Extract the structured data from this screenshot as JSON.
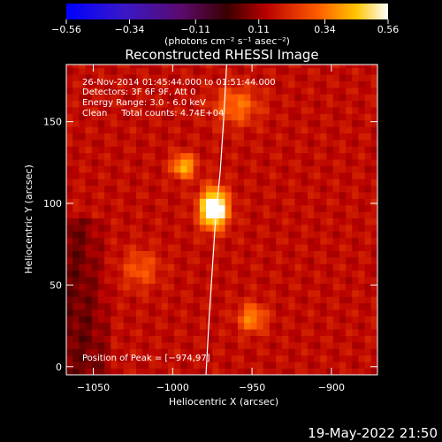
{
  "chart_data": {
    "type": "heatmap",
    "title": "Reconstructed RHESSI Image",
    "xlabel": "Heliocentric X (arcsec)",
    "ylabel": "Heliocentric Y (arcsec)",
    "xlim": [
      -1067,
      -871
    ],
    "ylim": [
      -5,
      185
    ],
    "x_ticks": [
      -1050,
      -1000,
      -950,
      -900
    ],
    "x_tick_labels": [
      "−1050",
      "−1000",
      "−950",
      "−900"
    ],
    "y_ticks": [
      0,
      50,
      100,
      150
    ],
    "y_tick_labels": [
      "0",
      "50",
      "100",
      "150"
    ],
    "colorbar": {
      "range": [
        -0.56,
        0.56
      ],
      "ticks": [
        -0.56,
        -0.34,
        -0.11,
        0.11,
        0.34,
        0.56
      ],
      "tick_labels": [
        "−0.56",
        "−0.34",
        "−0.11",
        "0.11",
        "0.34",
        "0.56"
      ],
      "unit_label": "(photons cm⁻² s⁻¹ asec⁻²)",
      "colormap": "hot-with-blue-negative"
    },
    "annotations": [
      "26-Nov-2014 01:45:44.000 to 01:51:44.000",
      "Detectors: 3F 6F 9F, Att 0",
      "Energy Range: 3.0 - 6.0 keV",
      "Clean     Total counts: 4.74E+04",
      "Position of Peak = [−974,97]"
    ],
    "peak": {
      "x": -974,
      "y": 97,
      "value": 0.56
    },
    "sources": [
      {
        "x": -974,
        "y": 97,
        "sx": 6,
        "sy": 8,
        "amp": 0.56
      },
      {
        "x": -993,
        "y": 123,
        "sx": 5,
        "sy": 5,
        "amp": 0.3
      },
      {
        "x": -950,
        "y": 30,
        "sx": 6,
        "sy": 6,
        "amp": 0.22
      },
      {
        "x": -960,
        "y": 160,
        "sx": 10,
        "sy": 8,
        "amp": 0.18
      },
      {
        "x": -1020,
        "y": 60,
        "sx": 8,
        "sy": 8,
        "amp": 0.14
      }
    ],
    "limb": [
      [
        -966,
        185
      ],
      [
        -968,
        150
      ],
      [
        -970,
        120
      ],
      [
        -973,
        90
      ],
      [
        -975,
        60
      ],
      [
        -977,
        30
      ],
      [
        -979,
        -5
      ]
    ],
    "background_level": 0.16,
    "grid": false
  },
  "footer": {
    "timestamp": "19-May-2022 21:50"
  }
}
